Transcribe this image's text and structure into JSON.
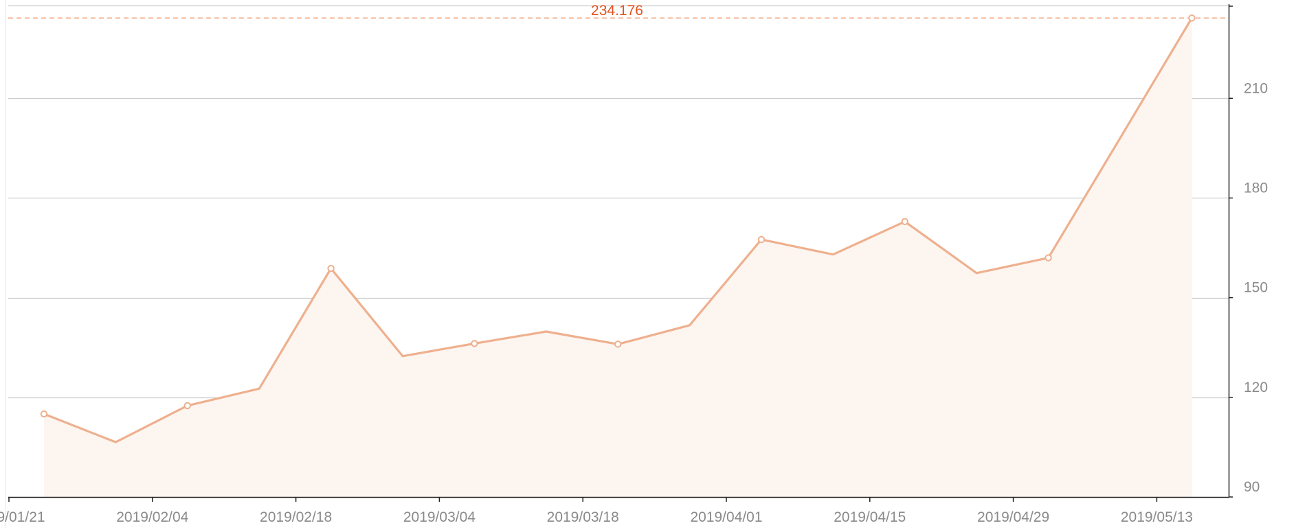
{
  "chart_data": {
    "type": "area",
    "x": [
      "2019/01/21",
      "2019/01/28",
      "2019/02/04",
      "2019/02/11",
      "2019/02/18",
      "2019/02/25",
      "2019/03/04",
      "2019/03/11",
      "2019/03/18",
      "2019/03/25",
      "2019/04/01",
      "2019/04/08",
      "2019/04/15",
      "2019/04/22",
      "2019/04/29",
      "2019/05/06",
      "2019/05/13"
    ],
    "values": [
      115.0,
      106.5,
      117.5,
      122.6,
      158.8,
      132.4,
      136.2,
      139.8,
      136.0,
      141.7,
      167.5,
      163.0,
      172.9,
      157.4,
      162.0,
      198.0,
      234.176
    ],
    "marker_indices": [
      0,
      2,
      4,
      6,
      8,
      10,
      12,
      14,
      16
    ],
    "x_ticks": [
      "2019/01/21",
      "2019/02/04",
      "2019/02/18",
      "2019/03/04",
      "2019/03/18",
      "2019/04/01",
      "2019/04/15",
      "2019/04/29",
      "2019/05/13"
    ],
    "y_ticks": [
      90,
      120,
      150,
      180,
      210
    ],
    "ylim": [
      90,
      239.6
    ],
    "y_axis_position": "right",
    "grid": true,
    "reference_line": {
      "value": 234.176,
      "label": "234.176"
    },
    "colors": {
      "line": "#eeb08e",
      "area": "#fdf5f0",
      "reference": "#f3a57d",
      "reference_label": "#e2521e",
      "grid": "#cccccc",
      "axis": "#222222",
      "tick_label": "#8a8a8a"
    }
  }
}
